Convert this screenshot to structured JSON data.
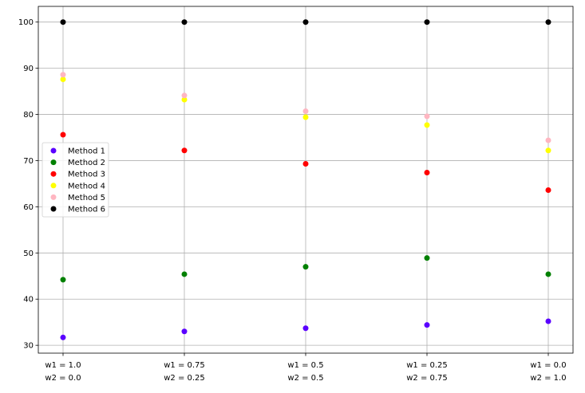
{
  "chart_data": {
    "type": "scatter",
    "title": "",
    "xlabel": "",
    "ylabel": "",
    "ylim": [
      28.3,
      103.4
    ],
    "grid": true,
    "legend_position": "center-left",
    "categories": [
      {
        "line1": "w1 = 1.0",
        "line2": "w2 = 0.0",
        "w1": "1.0",
        "w2": "0.0"
      },
      {
        "line1": "w1 = 0.75",
        "line2": "w2 = 0.25",
        "w1": "0.75",
        "w2": "0.25"
      },
      {
        "line1": "w1 = 0.5",
        "line2": "w2 = 0.5",
        "w1": "0.5",
        "w2": "0.5"
      },
      {
        "line1": "w1 = 0.25",
        "line2": "w2 = 0.75",
        "w1": "0.25",
        "w2": "0.75"
      },
      {
        "line1": "w1 = 0.0",
        "line2": "w2 = 1.0",
        "w1": "0.0",
        "w2": "1.0"
      }
    ],
    "yticks": [
      30,
      40,
      50,
      60,
      70,
      80,
      90,
      100
    ],
    "series": [
      {
        "name": "Method 1",
        "color": "#5a00ff",
        "values": [
          31.7,
          33.0,
          33.7,
          34.4,
          35.2
        ]
      },
      {
        "name": "Method 2",
        "color": "#008000",
        "values": [
          44.2,
          45.4,
          47.0,
          48.9,
          45.4
        ]
      },
      {
        "name": "Method 3",
        "color": "#ff0000",
        "values": [
          75.6,
          72.2,
          69.3,
          67.4,
          63.6
        ]
      },
      {
        "name": "Method 4",
        "color": "#ffff00",
        "values": [
          87.6,
          83.2,
          79.4,
          77.7,
          72.2
        ]
      },
      {
        "name": "Method 5",
        "color": "#ffb6c1",
        "values": [
          88.6,
          84.1,
          80.7,
          79.6,
          74.4
        ]
      },
      {
        "name": "Method 6",
        "color": "#000000",
        "values": [
          100,
          100,
          100,
          100,
          100
        ]
      }
    ]
  }
}
